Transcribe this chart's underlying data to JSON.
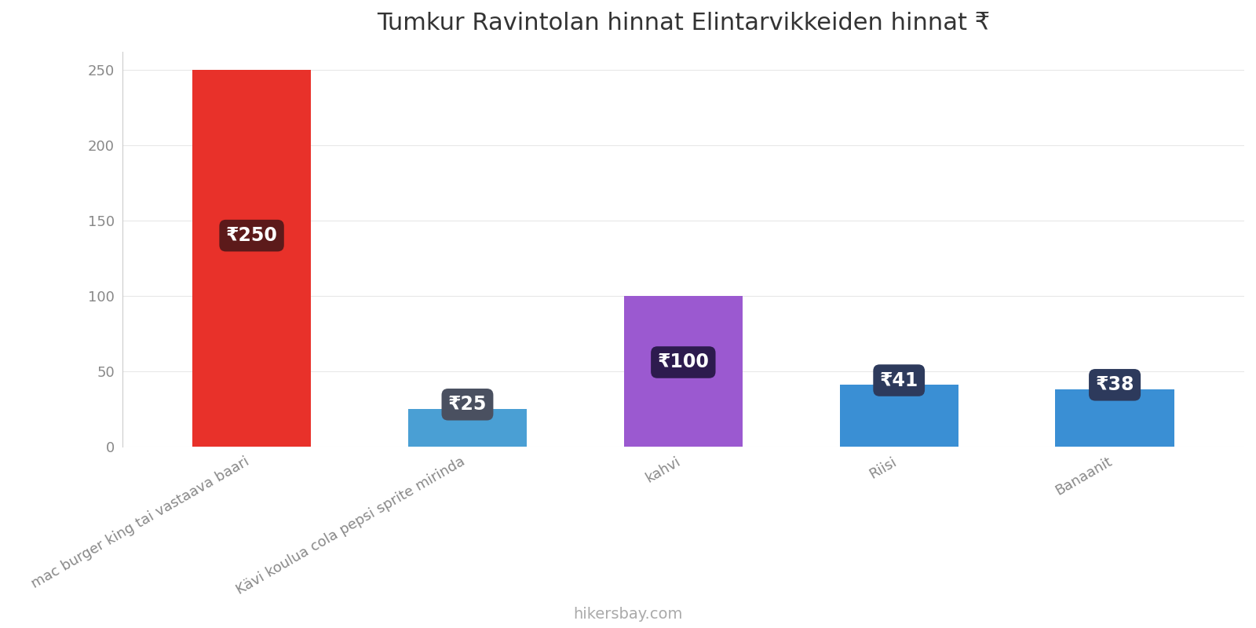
{
  "title": "Tumkur Ravintolan hinnat Elintarvikkeiden hinnat ₹",
  "categories": [
    "mac burger king tai vastaava baari",
    "Kävi koulua cola pepsi sprite mirinda",
    "kahvi",
    "Riisi",
    "Banaanit"
  ],
  "values": [
    250,
    25,
    100,
    41,
    38
  ],
  "bar_colors": [
    "#e8312a",
    "#4a9fd4",
    "#9b59d0",
    "#3a8fd4",
    "#3a8fd4"
  ],
  "label_texts": [
    "₹250",
    "₹25",
    "₹100",
    "₹41",
    "₹38"
  ],
  "label_bg_colors": [
    "#5c1a1a",
    "#4a5060",
    "#2d1b4e",
    "#2d3a5c",
    "#2d3a5c"
  ],
  "ylim": [
    0,
    262
  ],
  "yticks": [
    0,
    50,
    100,
    150,
    200,
    250
  ],
  "footer_text": "hikersbay.com",
  "background_color": "#ffffff",
  "title_fontsize": 22,
  "label_fontsize": 17,
  "tick_label_fontsize": 13,
  "footer_fontsize": 14,
  "bar_width": 0.55
}
